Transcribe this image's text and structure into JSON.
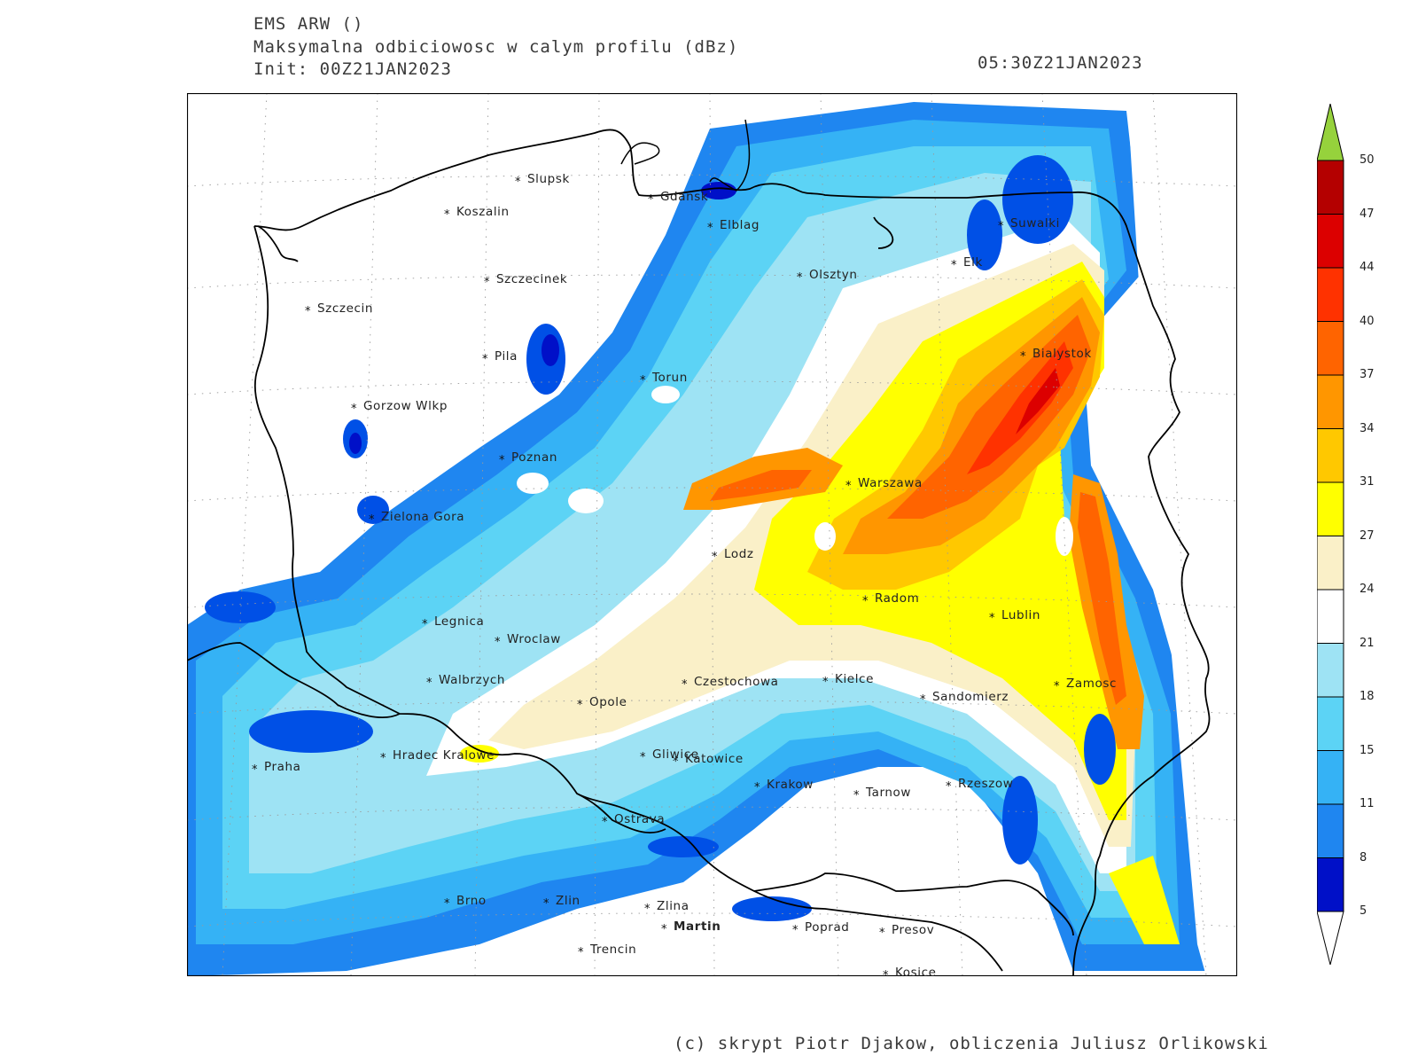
{
  "header": {
    "model": "EMS ARW ()",
    "field": "Maksymalna odbiciowosc w calym profilu (dBz)",
    "init": "Init: 00Z21JAN2023",
    "valid_time": "05:30Z21JAN2023"
  },
  "credit": "(c) skrypt Piotr Djakow, obliczenia Juliusz Orlikowski",
  "legend": {
    "unit": "dBz",
    "levels": [
      "5",
      "8",
      "11",
      "15",
      "18",
      "21",
      "24",
      "27",
      "31",
      "34",
      "37",
      "40",
      "44",
      "47",
      "50"
    ],
    "colors": [
      "#0010c8",
      "#0050e6",
      "#1f86f0",
      "#35b2f5",
      "#5cd3f5",
      "#9ee3f4",
      "#ffffff",
      "#faf0c8",
      "#ffff00",
      "#ffc800",
      "#ff9600",
      "#ff6400",
      "#ff3200",
      "#dc0000",
      "#b40000"
    ],
    "over_color": "#96d23c",
    "under_color": "#ffffff"
  },
  "cities": [
    {
      "name": "Slupsk",
      "bold": false
    },
    {
      "name": "Koszalin",
      "bold": false
    },
    {
      "name": "Gdansk",
      "bold": false
    },
    {
      "name": "Elblag",
      "bold": false
    },
    {
      "name": "Suwalki",
      "bold": false
    },
    {
      "name": "Elk",
      "bold": false
    },
    {
      "name": "Olsztyn",
      "bold": false
    },
    {
      "name": "Szczecinek",
      "bold": false
    },
    {
      "name": "Szczecin",
      "bold": false
    },
    {
      "name": "Pila",
      "bold": false
    },
    {
      "name": "Torun",
      "bold": false
    },
    {
      "name": "Bialystok",
      "bold": false
    },
    {
      "name": "Gorzow Wlkp",
      "bold": false
    },
    {
      "name": "Poznan",
      "bold": false
    },
    {
      "name": "Warszawa",
      "bold": false
    },
    {
      "name": "Zielona Gora",
      "bold": false
    },
    {
      "name": "Lodz",
      "bold": false
    },
    {
      "name": "Radom",
      "bold": false
    },
    {
      "name": "Lublin",
      "bold": false
    },
    {
      "name": "Legnica",
      "bold": false
    },
    {
      "name": "Wroclaw",
      "bold": false
    },
    {
      "name": "Walbrzych",
      "bold": false
    },
    {
      "name": "Czestochowa",
      "bold": false
    },
    {
      "name": "Kielce",
      "bold": false
    },
    {
      "name": "Zamosc",
      "bold": false
    },
    {
      "name": "Opole",
      "bold": false
    },
    {
      "name": "Sandomierz",
      "bold": false
    },
    {
      "name": "Praha",
      "bold": false
    },
    {
      "name": "Hradec Kralowe",
      "bold": false
    },
    {
      "name": "Gliwice",
      "bold": false
    },
    {
      "name": "Katowice",
      "bold": false
    },
    {
      "name": "Krakow",
      "bold": false
    },
    {
      "name": "Tarnow",
      "bold": false
    },
    {
      "name": "Rzeszow",
      "bold": false
    },
    {
      "name": "Ostrava",
      "bold": false
    },
    {
      "name": "Brno",
      "bold": false
    },
    {
      "name": "Zlin",
      "bold": false
    },
    {
      "name": "Zlina",
      "bold": false
    },
    {
      "name": "Martin",
      "bold": true
    },
    {
      "name": "Poprad",
      "bold": false
    },
    {
      "name": "Presov",
      "bold": false
    },
    {
      "name": "Trencin",
      "bold": false
    },
    {
      "name": "Kosice",
      "bold": false
    }
  ]
}
